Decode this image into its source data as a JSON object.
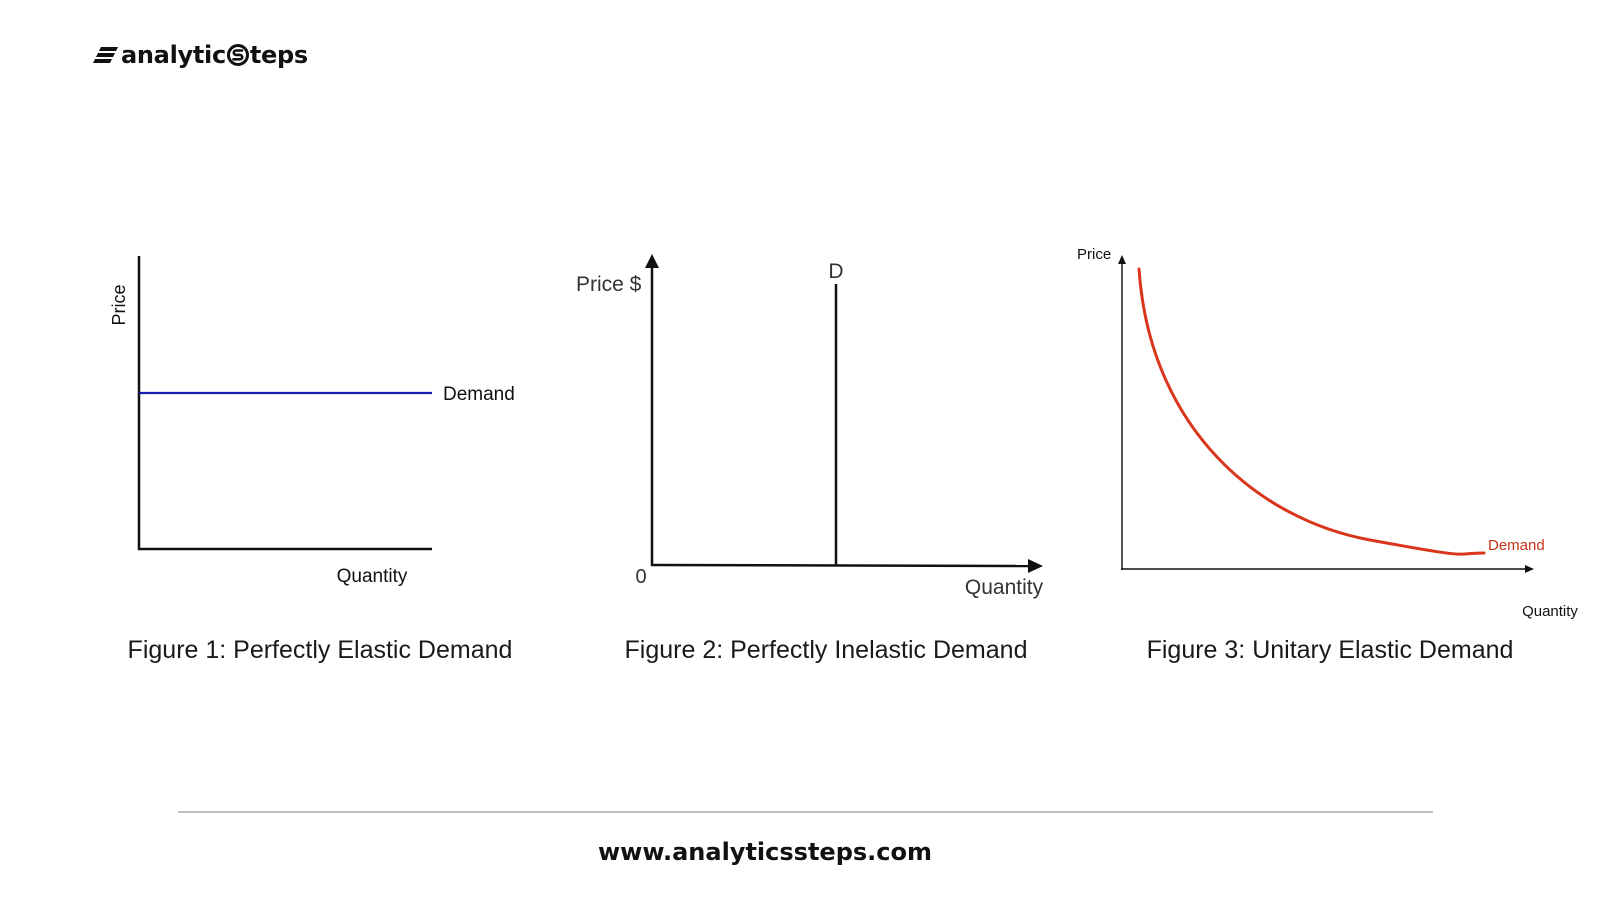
{
  "brand": {
    "logo_text_1": "analytic",
    "logo_text_2": "teps",
    "logo_name": "analyticsteps-logo",
    "url": "www.analyticssteps.com"
  },
  "colors": {
    "elastic_line": "#1a1ab0",
    "inelastic_line": "#111111",
    "unitary_curve": "#d9361b",
    "unitary_label": "#c83218",
    "axis": "#111111",
    "divider": "#bfbfbf"
  },
  "figures": [
    {
      "caption": "Figure 1: Perfectly Elastic Demand",
      "y_label": "Price",
      "x_label": "Quantity",
      "curve_label": "Demand"
    },
    {
      "caption": "Figure 2: Perfectly Inelastic Demand",
      "y_label": "Price $",
      "x_label": "Quantity",
      "origin_label": "0",
      "curve_label": "D"
    },
    {
      "caption": "Figure 3: Unitary Elastic Demand",
      "y_label": "Price",
      "x_label": "Quantity",
      "curve_label": "Demand"
    }
  ]
}
